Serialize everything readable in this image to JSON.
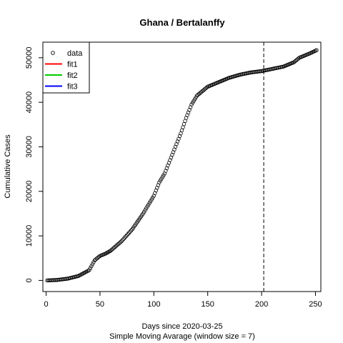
{
  "chart_data": {
    "type": "scatter",
    "title": "Ghana / Bertalanffy",
    "xlabel": "Days since 2020-03-25",
    "xlabel2": "Simple Moving Avarage (window size = 7)",
    "ylabel": "Cumulative Cases",
    "xlim": [
      -3,
      255
    ],
    "ylim": [
      -2500,
      53500
    ],
    "x_ticks": [
      0,
      50,
      100,
      150,
      200,
      250
    ],
    "y_ticks": [
      0,
      10000,
      20000,
      30000,
      40000,
      50000
    ],
    "vline_x": 202,
    "legend_position": "top-left",
    "legend": [
      {
        "label": "data",
        "kind": "point",
        "color": "#000000"
      },
      {
        "label": "fit1",
        "kind": "line",
        "color": "#ff0000"
      },
      {
        "label": "fit2",
        "kind": "line",
        "color": "#00cc00"
      },
      {
        "label": "fit3",
        "kind": "line",
        "color": "#0000ff"
      }
    ],
    "knots_x": [
      1,
      10,
      20,
      30,
      40,
      45,
      50,
      55,
      60,
      70,
      80,
      90,
      100,
      105,
      110,
      115,
      120,
      125,
      130,
      135,
      140,
      145,
      150,
      160,
      170,
      180,
      190,
      200,
      210,
      220,
      230,
      235,
      240,
      245,
      251
    ],
    "knots_y": [
      0,
      100,
      400,
      1000,
      2300,
      4500,
      5500,
      6000,
      6700,
      8800,
      11500,
      15000,
      19000,
      22000,
      24000,
      27000,
      30000,
      33000,
      36500,
      39500,
      41500,
      42500,
      43500,
      44500,
      45500,
      46200,
      46700,
      47000,
      47500,
      48000,
      49000,
      50000,
      50500,
      51000,
      51700
    ],
    "n_points": 251
  }
}
